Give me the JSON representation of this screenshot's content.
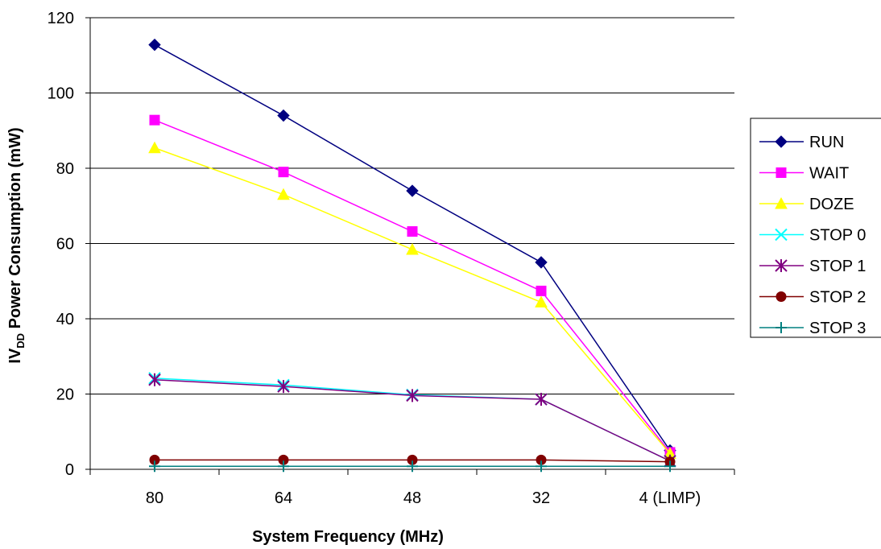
{
  "chart_data": {
    "type": "line",
    "title": "",
    "xlabel": "System Frequency (MHz)",
    "ylabel": {
      "prefix": "IV",
      "subscript": "DD",
      "suffix": " Power Consumption (mW)"
    },
    "categories": [
      "80",
      "64",
      "48",
      "32",
      "4 (LIMP)"
    ],
    "ylim": [
      0,
      120
    ],
    "yticks": [
      0,
      20,
      40,
      60,
      80,
      100,
      120
    ],
    "grid": "horizontal",
    "legend_position": "right",
    "series": [
      {
        "name": "RUN",
        "color": "#000080",
        "marker": "diamond",
        "values": [
          112.8,
          94.0,
          74.0,
          55.0,
          5.0
        ]
      },
      {
        "name": "WAIT",
        "color": "#FF00FF",
        "marker": "square",
        "values": [
          92.8,
          79.0,
          63.2,
          47.4,
          4.5
        ]
      },
      {
        "name": "DOZE",
        "color": "#FFFF00",
        "marker": "triangle",
        "values": [
          85.4,
          73.0,
          58.4,
          44.4,
          4.2
        ]
      },
      {
        "name": "STOP 0",
        "color": "#00FFFF",
        "marker": "x",
        "values": [
          24.2,
          22.4,
          19.8,
          18.6,
          2.2
        ]
      },
      {
        "name": "STOP 1",
        "color": "#800080",
        "marker": "star",
        "values": [
          23.8,
          22.0,
          19.6,
          18.6,
          2.2
        ]
      },
      {
        "name": "STOP 2",
        "color": "#800000",
        "marker": "circle",
        "values": [
          2.5,
          2.5,
          2.5,
          2.5,
          2.0
        ]
      },
      {
        "name": "STOP 3",
        "color": "#008080",
        "marker": "plus",
        "values": [
          0.8,
          0.8,
          0.8,
          0.8,
          0.8
        ]
      }
    ]
  }
}
